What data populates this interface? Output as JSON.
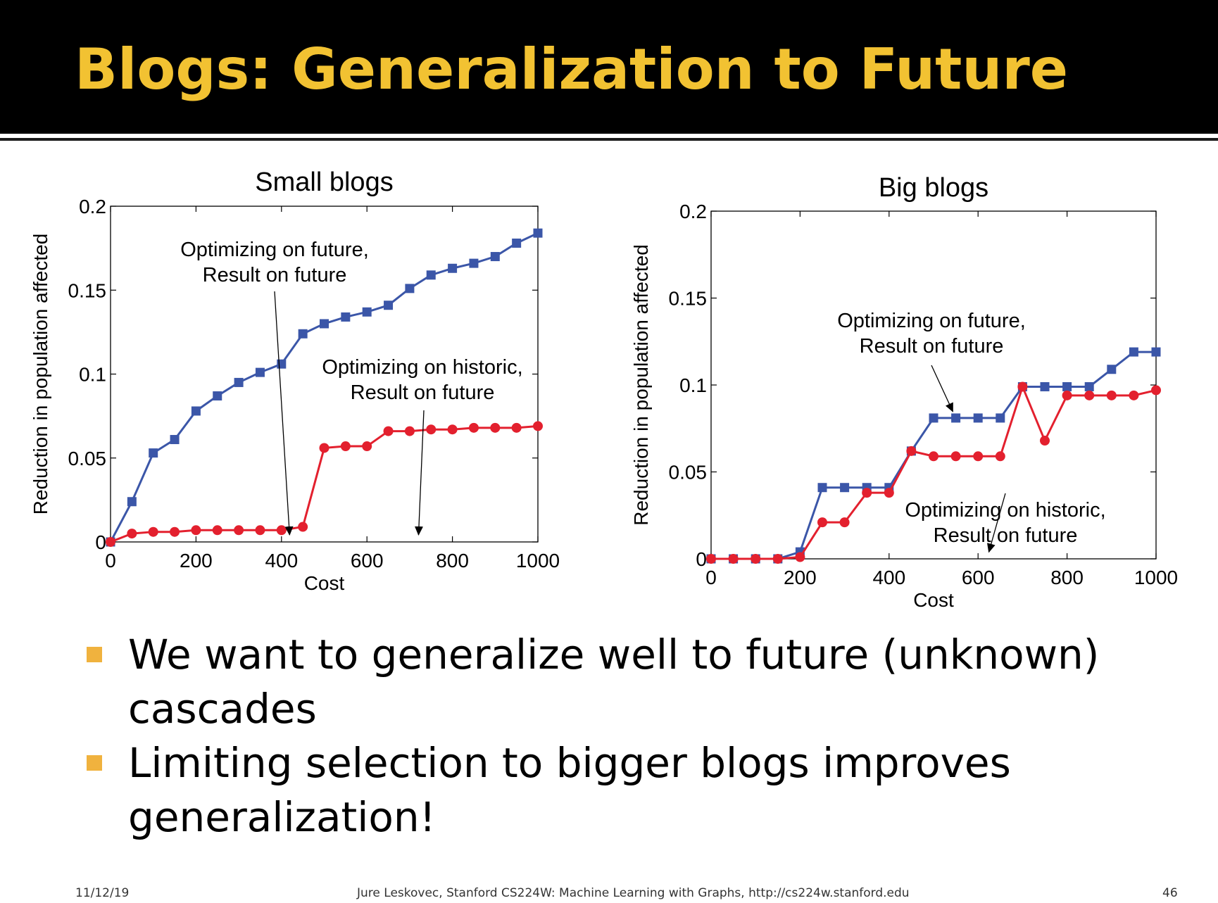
{
  "slide": {
    "title": "Blogs: Generalization to Future",
    "accent_color": "#f2c232",
    "bullets": [
      "We want to generalize well to future (unknown) cascades",
      "Limiting selection to bigger blogs improves generalization!"
    ],
    "footer": {
      "date": "11/12/19",
      "credit": "Jure Leskovec, Stanford CS224W: Machine Learning with Graphs, http://cs224w.stanford.edu",
      "page": "46"
    }
  },
  "chart_data": [
    {
      "type": "line",
      "title": "Small blogs",
      "xlabel": "Cost",
      "ylabel": "Reduction in population affected",
      "xlim": [
        0,
        1000
      ],
      "ylim": [
        0,
        0.2
      ],
      "xticks": [
        "0",
        "200",
        "400",
        "600",
        "800",
        "1000"
      ],
      "yticks": [
        "0",
        "0.05",
        "0.1",
        "0.15",
        "0.2"
      ],
      "grid": false,
      "series": [
        {
          "color": "#3b56a8",
          "marker": "square",
          "x": [
            0,
            50,
            100,
            150,
            200,
            250,
            300,
            350,
            400,
            450,
            500,
            550,
            600,
            650,
            700,
            750,
            800,
            850,
            900,
            950,
            1000
          ],
          "y": [
            0.0,
            0.024,
            0.053,
            0.061,
            0.078,
            0.087,
            0.095,
            0.101,
            0.106,
            0.124,
            0.13,
            0.134,
            0.137,
            0.141,
            0.151,
            0.159,
            0.163,
            0.166,
            0.17,
            0.178,
            0.184
          ]
        },
        {
          "color": "#e3202e",
          "marker": "circle",
          "x": [
            0,
            50,
            100,
            150,
            200,
            250,
            300,
            350,
            400,
            450,
            500,
            550,
            600,
            650,
            700,
            750,
            800,
            850,
            900,
            950,
            1000
          ],
          "y": [
            0.0,
            0.005,
            0.006,
            0.006,
            0.007,
            0.007,
            0.007,
            0.007,
            0.007,
            0.009,
            0.056,
            0.057,
            0.057,
            0.066,
            0.066,
            0.067,
            0.067,
            0.068,
            0.068,
            0.068,
            0.069
          ]
        }
      ],
      "annotations": [
        {
          "lines": [
            "Optimizing on future,",
            "Result on future"
          ],
          "target_series": 0,
          "target_x": 420
        },
        {
          "lines": [
            "Optimizing on historic,",
            "Result on future"
          ],
          "target_series": 1,
          "target_x": 720
        }
      ]
    },
    {
      "type": "line",
      "title": "Big blogs",
      "xlabel": "Cost",
      "ylabel": "Reduction in population affected",
      "xlim": [
        0,
        1000
      ],
      "ylim": [
        0,
        0.2
      ],
      "xticks": [
        "0",
        "200",
        "400",
        "600",
        "800",
        "1000"
      ],
      "yticks": [
        "0",
        "0.05",
        "0.1",
        "0.15",
        "0.2"
      ],
      "grid": false,
      "series": [
        {
          "color": "#3b56a8",
          "marker": "square",
          "x": [
            0,
            50,
            100,
            150,
            200,
            250,
            300,
            350,
            400,
            450,
            500,
            550,
            600,
            650,
            700,
            750,
            800,
            850,
            900,
            950,
            1000
          ],
          "y": [
            0.0,
            0.0,
            0.0,
            0.0,
            0.004,
            0.041,
            0.041,
            0.041,
            0.041,
            0.062,
            0.081,
            0.081,
            0.081,
            0.081,
            0.099,
            0.099,
            0.099,
            0.099,
            0.109,
            0.119,
            0.119
          ]
        },
        {
          "color": "#e3202e",
          "marker": "circle",
          "x": [
            0,
            50,
            100,
            150,
            200,
            250,
            300,
            350,
            400,
            450,
            500,
            550,
            600,
            650,
            700,
            750,
            800,
            850,
            900,
            950,
            1000
          ],
          "y": [
            0.0,
            0.0,
            0.0,
            0.0,
            0.001,
            0.021,
            0.021,
            0.038,
            0.038,
            0.062,
            0.059,
            0.059,
            0.059,
            0.059,
            0.099,
            0.068,
            0.094,
            0.094,
            0.094,
            0.094,
            0.097
          ]
        }
      ],
      "annotations": [
        {
          "lines": [
            "Optimizing on future,",
            "Result on future"
          ],
          "target_series": 0,
          "target_x": 550
        },
        {
          "lines": [
            "Optimizing on historic,",
            "Result on future"
          ],
          "target_series": 1,
          "target_x": 620
        }
      ]
    }
  ]
}
